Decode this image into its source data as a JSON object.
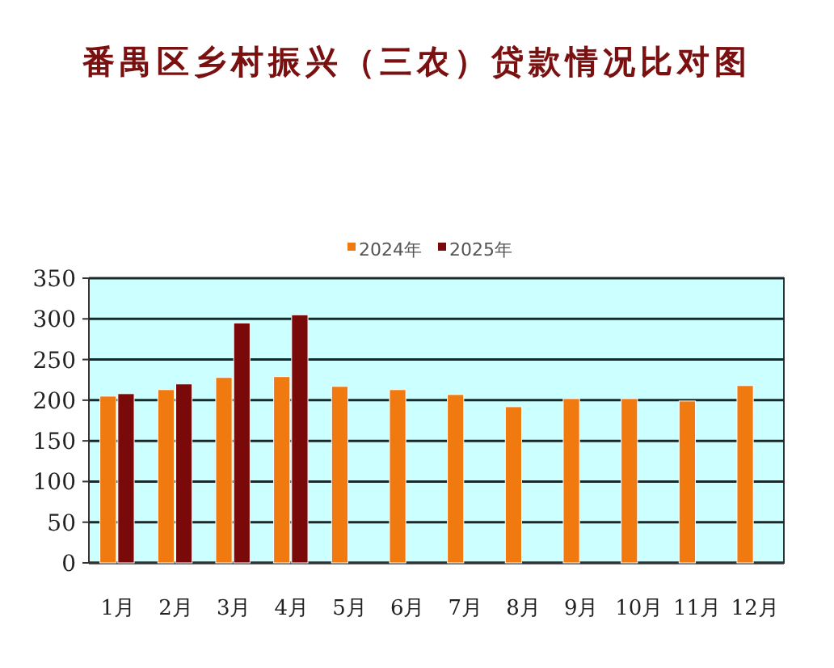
{
  "chart_data": {
    "type": "bar",
    "title": "番禺区乡村振兴（三农）贷款情况比对图",
    "categories": [
      "1月",
      "2月",
      "3月",
      "4月",
      "5月",
      "6月",
      "7月",
      "8月",
      "9月",
      "10月",
      "11月",
      "12月"
    ],
    "series": [
      {
        "name": "2024年",
        "color": "#f07a10",
        "values": [
          205,
          213,
          228,
          229,
          217,
          213,
          207,
          192,
          202,
          202,
          199,
          218
        ]
      },
      {
        "name": "2025年",
        "color": "#7a0a0a",
        "values": [
          208,
          220,
          295,
          305,
          null,
          null,
          null,
          null,
          null,
          null,
          null,
          null
        ]
      }
    ],
    "ylim": [
      0,
      350
    ],
    "yticks": [
      0,
      50,
      100,
      150,
      200,
      250,
      300,
      350
    ],
    "grid": "y",
    "legend": "top"
  }
}
